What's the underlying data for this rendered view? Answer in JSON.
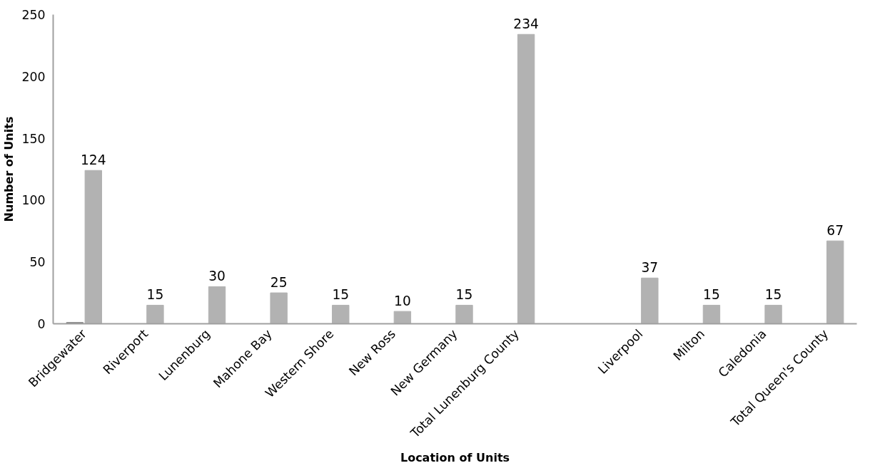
{
  "chart_data": {
    "type": "bar",
    "xlabel": "Location of Units",
    "ylabel": "Number of Units",
    "categories": [
      "Bridgewater",
      "Riverport",
      "Lunenburg",
      "Mahone Bay",
      "Western Shore",
      "New Ross",
      "New Germany",
      "Total Lunenburg County",
      null,
      "Liverpool",
      "Milton",
      "Caledonia",
      "Total Queen's County"
    ],
    "series": [
      {
        "color": "#7f7f7f",
        "values": [
          1,
          null,
          null,
          null,
          null,
          null,
          null,
          null,
          null,
          null,
          null,
          null,
          null
        ]
      },
      {
        "color": "#b2b2b2",
        "values": [
          124,
          15,
          30,
          25,
          15,
          10,
          15,
          234,
          null,
          37,
          15,
          15,
          67
        ],
        "value_labels": [
          "124",
          "15",
          "30",
          "25",
          "15",
          "10",
          "15",
          "234",
          null,
          "37",
          "15",
          "15",
          "67"
        ]
      }
    ],
    "ylim": [
      0,
      250
    ],
    "yticks": [
      0,
      50,
      100,
      150,
      200,
      250
    ],
    "grid": false
  }
}
